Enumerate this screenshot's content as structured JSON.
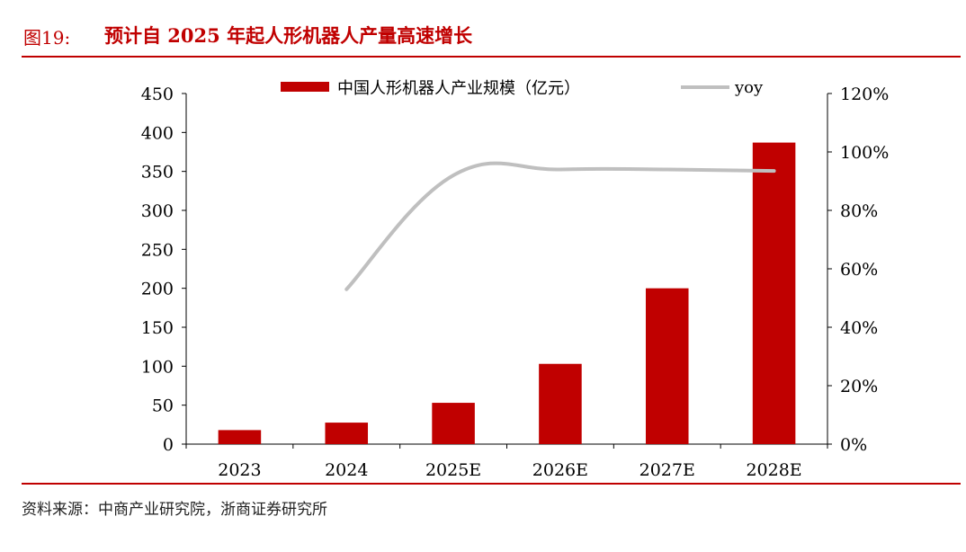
{
  "figure": {
    "label": "图19:",
    "title": "预计自 2025 年起人形机器人产量高速增长",
    "source": "资料来源：中商产业研究院，浙商证券研究所"
  },
  "colors": {
    "accent": "#c00000",
    "bar": "#c00000",
    "line": "#bfbfbf"
  },
  "chart_data": {
    "type": "bar",
    "categories": [
      "2023",
      "2024",
      "2025E",
      "2026E",
      "2027E",
      "2028E"
    ],
    "series": [
      {
        "name": "中国人形机器人产业规模（亿元）",
        "type": "bar",
        "axis": "left",
        "values": [
          18,
          27.6,
          53,
          103,
          200,
          387
        ]
      },
      {
        "name": "yoy",
        "type": "line",
        "axis": "right",
        "values": [
          null,
          0.53,
          0.92,
          0.94,
          0.94,
          0.935
        ]
      }
    ],
    "y_left": {
      "ylim": [
        0,
        450
      ],
      "ticks": [
        "0",
        "50",
        "100",
        "150",
        "200",
        "250",
        "300",
        "350",
        "400",
        "450"
      ]
    },
    "y_right": {
      "ylim": [
        0,
        1.2
      ],
      "ticks": [
        "0%",
        "20%",
        "40%",
        "60%",
        "80%",
        "100%",
        "120%"
      ]
    },
    "grid": false,
    "legend": "top"
  }
}
